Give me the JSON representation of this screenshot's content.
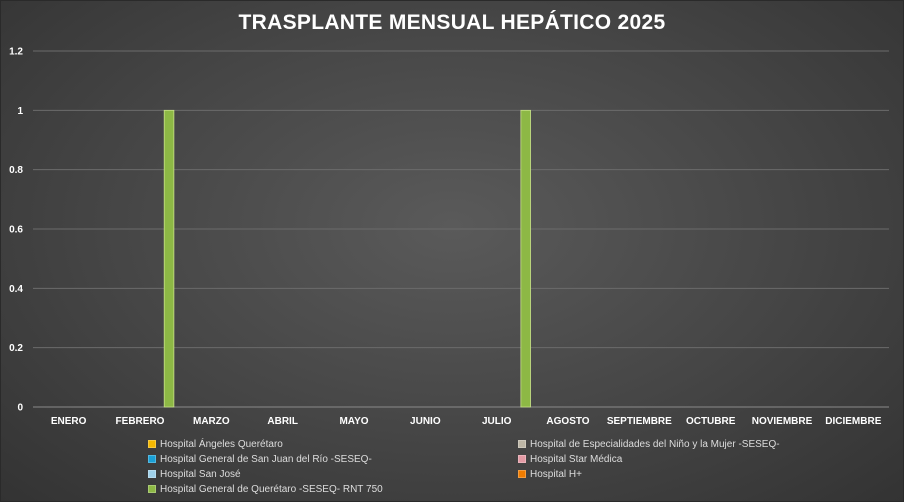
{
  "chart_data": {
    "type": "bar",
    "title": "TRASPLANTE MENSUAL HEPÁTICO 2025",
    "xlabel": "",
    "ylabel": "",
    "categories": [
      "ENERO",
      "FEBRERO",
      "MARZO",
      "ABRIL",
      "MAYO",
      "JUNIO",
      "JULIO",
      "AGOSTO",
      "SEPTIEMBRE",
      "OCTUBRE",
      "NOVIEMBRE",
      "DICIEMBRE"
    ],
    "ylim": [
      0,
      1.2
    ],
    "yticks": [
      "0",
      "0.2",
      "0.4",
      "0.6",
      "0.8",
      "1",
      "1.2"
    ],
    "grid": true,
    "legend_position": "bottom",
    "series": [
      {
        "name": "Hospital Ángeles Querétaro",
        "color": "#f5b800",
        "values": [
          0,
          0,
          0,
          0,
          0,
          0,
          0,
          0,
          0,
          0,
          0,
          0
        ]
      },
      {
        "name": "Hospital de Especialidades del Niño y la Mujer -SESEQ-",
        "color": "#bdb6a6",
        "values": [
          0,
          0,
          0,
          0,
          0,
          0,
          0,
          0,
          0,
          0,
          0,
          0
        ]
      },
      {
        "name": "Hospital General de San Juan del Río -SESEQ-",
        "color": "#1aa0d6",
        "values": [
          0,
          0,
          0,
          0,
          0,
          0,
          0,
          0,
          0,
          0,
          0,
          0
        ]
      },
      {
        "name": "Hospital Star Médica",
        "color": "#e39aa4",
        "values": [
          0,
          0,
          0,
          0,
          0,
          0,
          0,
          0,
          0,
          0,
          0,
          0
        ]
      },
      {
        "name": "Hospital San José",
        "color": "#9fd1ea",
        "values": [
          0,
          0,
          0,
          0,
          0,
          0,
          0,
          0,
          0,
          0,
          0,
          0
        ]
      },
      {
        "name": "Hospital H+",
        "color": "#f07c00",
        "values": [
          0,
          0,
          0,
          0,
          0,
          0,
          0,
          0,
          0,
          0,
          0,
          0
        ]
      },
      {
        "name": "Hospital General de Querétaro -SESEQ- RNT 750",
        "color": "#8db845",
        "values": [
          0,
          1,
          0,
          0,
          0,
          0,
          1,
          0,
          0,
          0,
          0,
          0
        ]
      }
    ]
  }
}
